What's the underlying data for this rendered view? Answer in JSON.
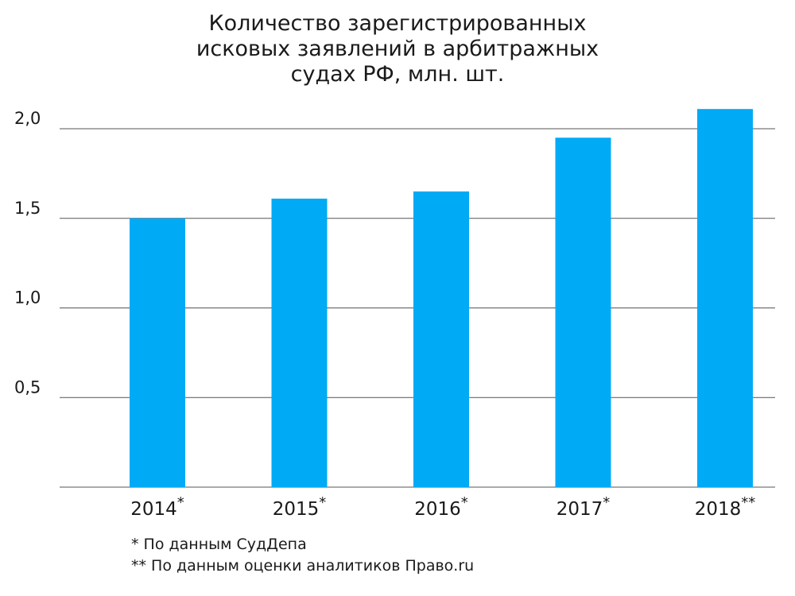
{
  "chart_data": {
    "type": "bar",
    "title_lines": [
      "Количество зарегистрированных",
      "исковых  заявлений в арбитражных",
      "судах РФ, млн. шт."
    ],
    "categories": [
      "2014",
      "2015",
      "2016",
      "2017",
      "2018"
    ],
    "category_marks": [
      "*",
      "*",
      "*",
      "*",
      "**"
    ],
    "values": [
      1.5,
      1.61,
      1.65,
      1.95,
      2.11
    ],
    "yticks": [
      "0,5",
      "1,0",
      "1,5",
      "2,0"
    ],
    "ytick_values": [
      0.5,
      1.0,
      1.5,
      2.0
    ],
    "ylim": [
      0,
      2.2
    ],
    "grid": true,
    "legend": "none",
    "colors": {
      "bar": "#00aaf5",
      "grid": "#555555",
      "text": "#1a1a1a"
    }
  },
  "footnotes": [
    "* По данным СудДепа",
    "** По данным оценки аналитиков Право.ru"
  ]
}
